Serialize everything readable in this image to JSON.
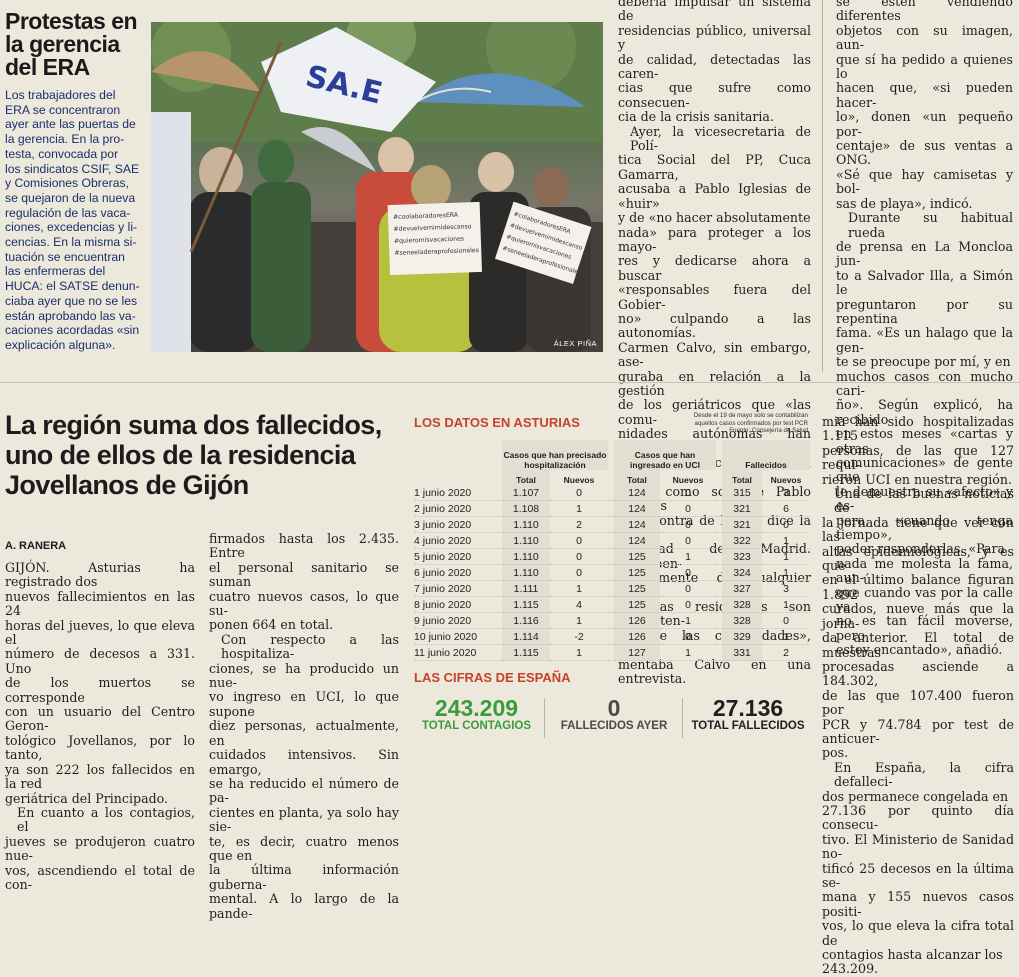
{
  "protest": {
    "title_lines": [
      "Protestas en",
      "la gerencia",
      "del ERA"
    ],
    "body_lines": [
      "Los trabajadores del",
      "ERA se concentraron",
      "ayer ante las puertas de",
      "la gerencia. En la pro-",
      "testa, convocada por",
      "los sindicatos CSIF, SAE",
      "y Comisiones Obreras,",
      "se quejaron de la nueva",
      "regulación de las vaca-",
      "ciones, excedencias y li-",
      "cencias. En la misma si-",
      "tuación se encuentran",
      "las enfermeras del",
      "HUCA: el SATSE denun-",
      "ciaba ayer que no se les",
      "están aprobando las va-",
      "caciones acordadas «sin",
      "explicación alguna»."
    ],
    "photo_credit": "ÁLEX PIÑA",
    "flag_text": "SA.E",
    "sign_left": [
      "#coolaboradoresERA",
      "#devuelvemimidescanso",
      "#quieromisvacaciones",
      "#seneeladeraprofesionales"
    ],
    "sign_right": [
      "#colaboradoresERA",
      "#devuelvemimidescanso",
      "#quieromisvacaciones",
      "#seneeladeraprofesionales"
    ]
  },
  "top_col1_lines": [
    "debería impulsar un sistema de",
    "residencias público, universal y",
    "de calidad, detectadas las caren-",
    "cias que sufre como consecuen-",
    "cia de la crisis sanitaria.",
    "Ayer, la vicesecretaria de Polí-",
    "tica Social del PP, Cuca Gamarra,",
    "acusaba a Pablo Iglesias de «huir»",
    "y de «no hacer absolutamente",
    "nada» para proteger a los mayo-",
    "res y dedicarse ahora a buscar",
    "«responsables fuera del Gobier-",
    "no» culpando a las autonomías.",
    "Carmen Calvo, sin embargo, ase-",
    "guraba en relación a la gestión",
    "de los geriátricos que «las comu-",
    "nidades autónomas han tenido",
    "las competencias todo el rato»,",
    "tal y como sostiene Pablo Iglesias",
    "y en contra de lo que dice la Co-",
    "munidad de Madrid. «Indepen-",
    "dientemente de cualquier deba-",
    "te, las residencias son competen-",
    "cia de las comunidades», argu-",
    "mentaba Calvo en una entrevista."
  ],
  "top_col2_lines": [
    "se estén vendiendo diferentes",
    "objetos con su imagen, aun-",
    "que sí ha pedido a quienes lo",
    "hacen que, «si pueden hacer-",
    "lo», donen «un pequeño por-",
    "centaje» de sus ventas a ONG.",
    "«Sé que hay camisetas y bol-",
    "sas de playa», indicó.",
    "Durante su habitual rueda",
    "de prensa en La Moncloa jun-",
    "to a Salvador Illa, a Simón le",
    "preguntaron por su repentina",
    "fama. «Es un halago que la gen-",
    "te se preocupe por mí, y en",
    "muchos casos con mucho cari-",
    "ño». Según explicó, ha recibido",
    "en estos meses «cartas y otras",
    "comunicaciones» de gente que",
    "le demuestra su «afecto» y es-",
    "pera, «cuando tenga tiempo»,",
    "poder responderlas. «Para",
    "nada me molesta la fama, aun-",
    "que cuando vas por la calle ya",
    "no es tan fácil moverse, pero",
    "estoy encantado», añadió."
  ],
  "article": {
    "headline_lines": [
      "La región suma dos fallecidos,",
      "uno de ellos de la residencia",
      "Jovellanos de Gijón"
    ],
    "byline": "A. RANERA",
    "col1_lines": [
      "GIJÓN. Asturias ha registrado dos",
      "nuevos fallecimientos en las 24",
      "horas del jueves, lo que eleva el",
      "número de decesos a 331. Uno",
      "de los muertos se corresponde",
      "con un usuario del Centro Geron-",
      "tológico Jovellanos, por lo tanto,",
      "ya son 222 los fallecidos en la red",
      "geriátrica del Principado.",
      "En cuanto a los contagios, el",
      "jueves se produjeron cuatro nue-",
      "vos, ascendiendo el total de con-"
    ],
    "col2_lines": [
      "firmados hasta los 2.435. Entre",
      "el personal sanitario se suman",
      "cuatro nuevos casos, lo que su-",
      "ponen 664 en total.",
      "Con respecto a las hospitaliza-",
      "ciones, se ha producido un nue-",
      "vo ingreso en UCI, lo que supone",
      "diez personas, actualmente, en",
      "cuidados intensivos. Sin emargo,",
      "se ha reducido el número de pa-",
      "cientes en planta, ya solo hay sie-",
      "te, es decir, cuatro menos que en",
      "la última información guberna-",
      "mental. A lo largo de la pande-"
    ],
    "col3_lines": [
      "mia han sido hospitalizadas 1.115",
      "personas, de las que 127 requi-",
      "rieron UCI en nuestra región.",
      "Una de las buenas noticias de",
      "la jornada tiene que ver con las",
      "altas epidemiológicas, y es que",
      "en el último balance figuran 1.892",
      "curados, nueve más que la jorna-",
      "da anterior. El total de muestras",
      "procesadas asciende a 184.302,",
      "de las que 107.400 fueron por",
      "PCR y 74.784 por test de anticuer-",
      "pos.",
      "En España, la cifra defalleci-",
      "dos permanece congelada en",
      "27.136 por quinto día consecu-",
      "tivo. El Ministerio de Sanidad no-",
      "tificó 25 decesos en la última se-",
      "mana y 155 nuevos casos positi-",
      "vos, lo que eleva la cifra total de",
      "contagios hasta alcanzar los",
      "243.209."
    ]
  },
  "asturias": {
    "title": "LOS DATOS EN ASTURIAS",
    "note_lines": [
      "Desde el 19 de mayo solo se contabilizan",
      "aquellos casos confirmados por test PCR",
      "Fuente: Consejería de Salud"
    ],
    "group_headers": [
      "Casos que han precisado hospitalización",
      "Casos que han ingresado en UCI",
      "Fallecidos"
    ],
    "sub_headers": [
      "Total",
      "Nuevos",
      "Total",
      "Nuevos",
      "Total",
      "Nuevos"
    ],
    "rows": [
      {
        "date": "1 junio 2020",
        "h_total": "1.107",
        "h_new": "0",
        "u_total": "124",
        "u_new": "0",
        "f_total": "315",
        "f_new": "3"
      },
      {
        "date": "2 junio 2020",
        "h_total": "1.108",
        "h_new": "1",
        "u_total": "124",
        "u_new": "0",
        "f_total": "321",
        "f_new": "6"
      },
      {
        "date": "3 junio 2020",
        "h_total": "1.110",
        "h_new": "2",
        "u_total": "124",
        "u_new": "0",
        "f_total": "321",
        "f_new": "0"
      },
      {
        "date": "4 junio 2020",
        "h_total": "1.110",
        "h_new": "0",
        "u_total": "124",
        "u_new": "0",
        "f_total": "322",
        "f_new": "1"
      },
      {
        "date": "5 junio 2020",
        "h_total": "1.110",
        "h_new": "0",
        "u_total": "125",
        "u_new": "1",
        "f_total": "323",
        "f_new": "1"
      },
      {
        "date": "6 junio 2020",
        "h_total": "1.110",
        "h_new": "0",
        "u_total": "125",
        "u_new": "0",
        "f_total": "324",
        "f_new": "1"
      },
      {
        "date": "7 junio 2020",
        "h_total": "1.111",
        "h_new": "1",
        "u_total": "125",
        "u_new": "0",
        "f_total": "327",
        "f_new": "3"
      },
      {
        "date": "8 junio 2020",
        "h_total": "1.115",
        "h_new": "4",
        "u_total": "125",
        "u_new": "0",
        "f_total": "328",
        "f_new": "1"
      },
      {
        "date": "9 junio 2020",
        "h_total": "1.116",
        "h_new": "1",
        "u_total": "126",
        "u_new": "1",
        "f_total": "328",
        "f_new": "0"
      },
      {
        "date": "10 junio 2020",
        "h_total": "1.114",
        "h_new": "-2",
        "u_total": "126",
        "u_new": "0",
        "f_total": "329",
        "f_new": "1"
      },
      {
        "date": "11 junio 2020",
        "h_total": "1.115",
        "h_new": "1",
        "u_total": "127",
        "u_new": "1",
        "f_total": "331",
        "f_new": "2"
      }
    ]
  },
  "spain": {
    "title": "LAS CIFRAS DE ESPAÑA",
    "stats": [
      {
        "value": "243.209",
        "label": "TOTAL CONTAGIOS",
        "color": "#3c9a3e"
      },
      {
        "value": "0",
        "label": "FALLECIDOS AYER",
        "color": "#4a4a4a"
      },
      {
        "value": "27.136",
        "label": "TOTAL FALLECIDOS",
        "color": "#1e1e1e"
      }
    ]
  },
  "colors": {
    "accent": "#c4432a",
    "lead_blue": "#1a2f6b",
    "green": "#3c9a3e"
  }
}
